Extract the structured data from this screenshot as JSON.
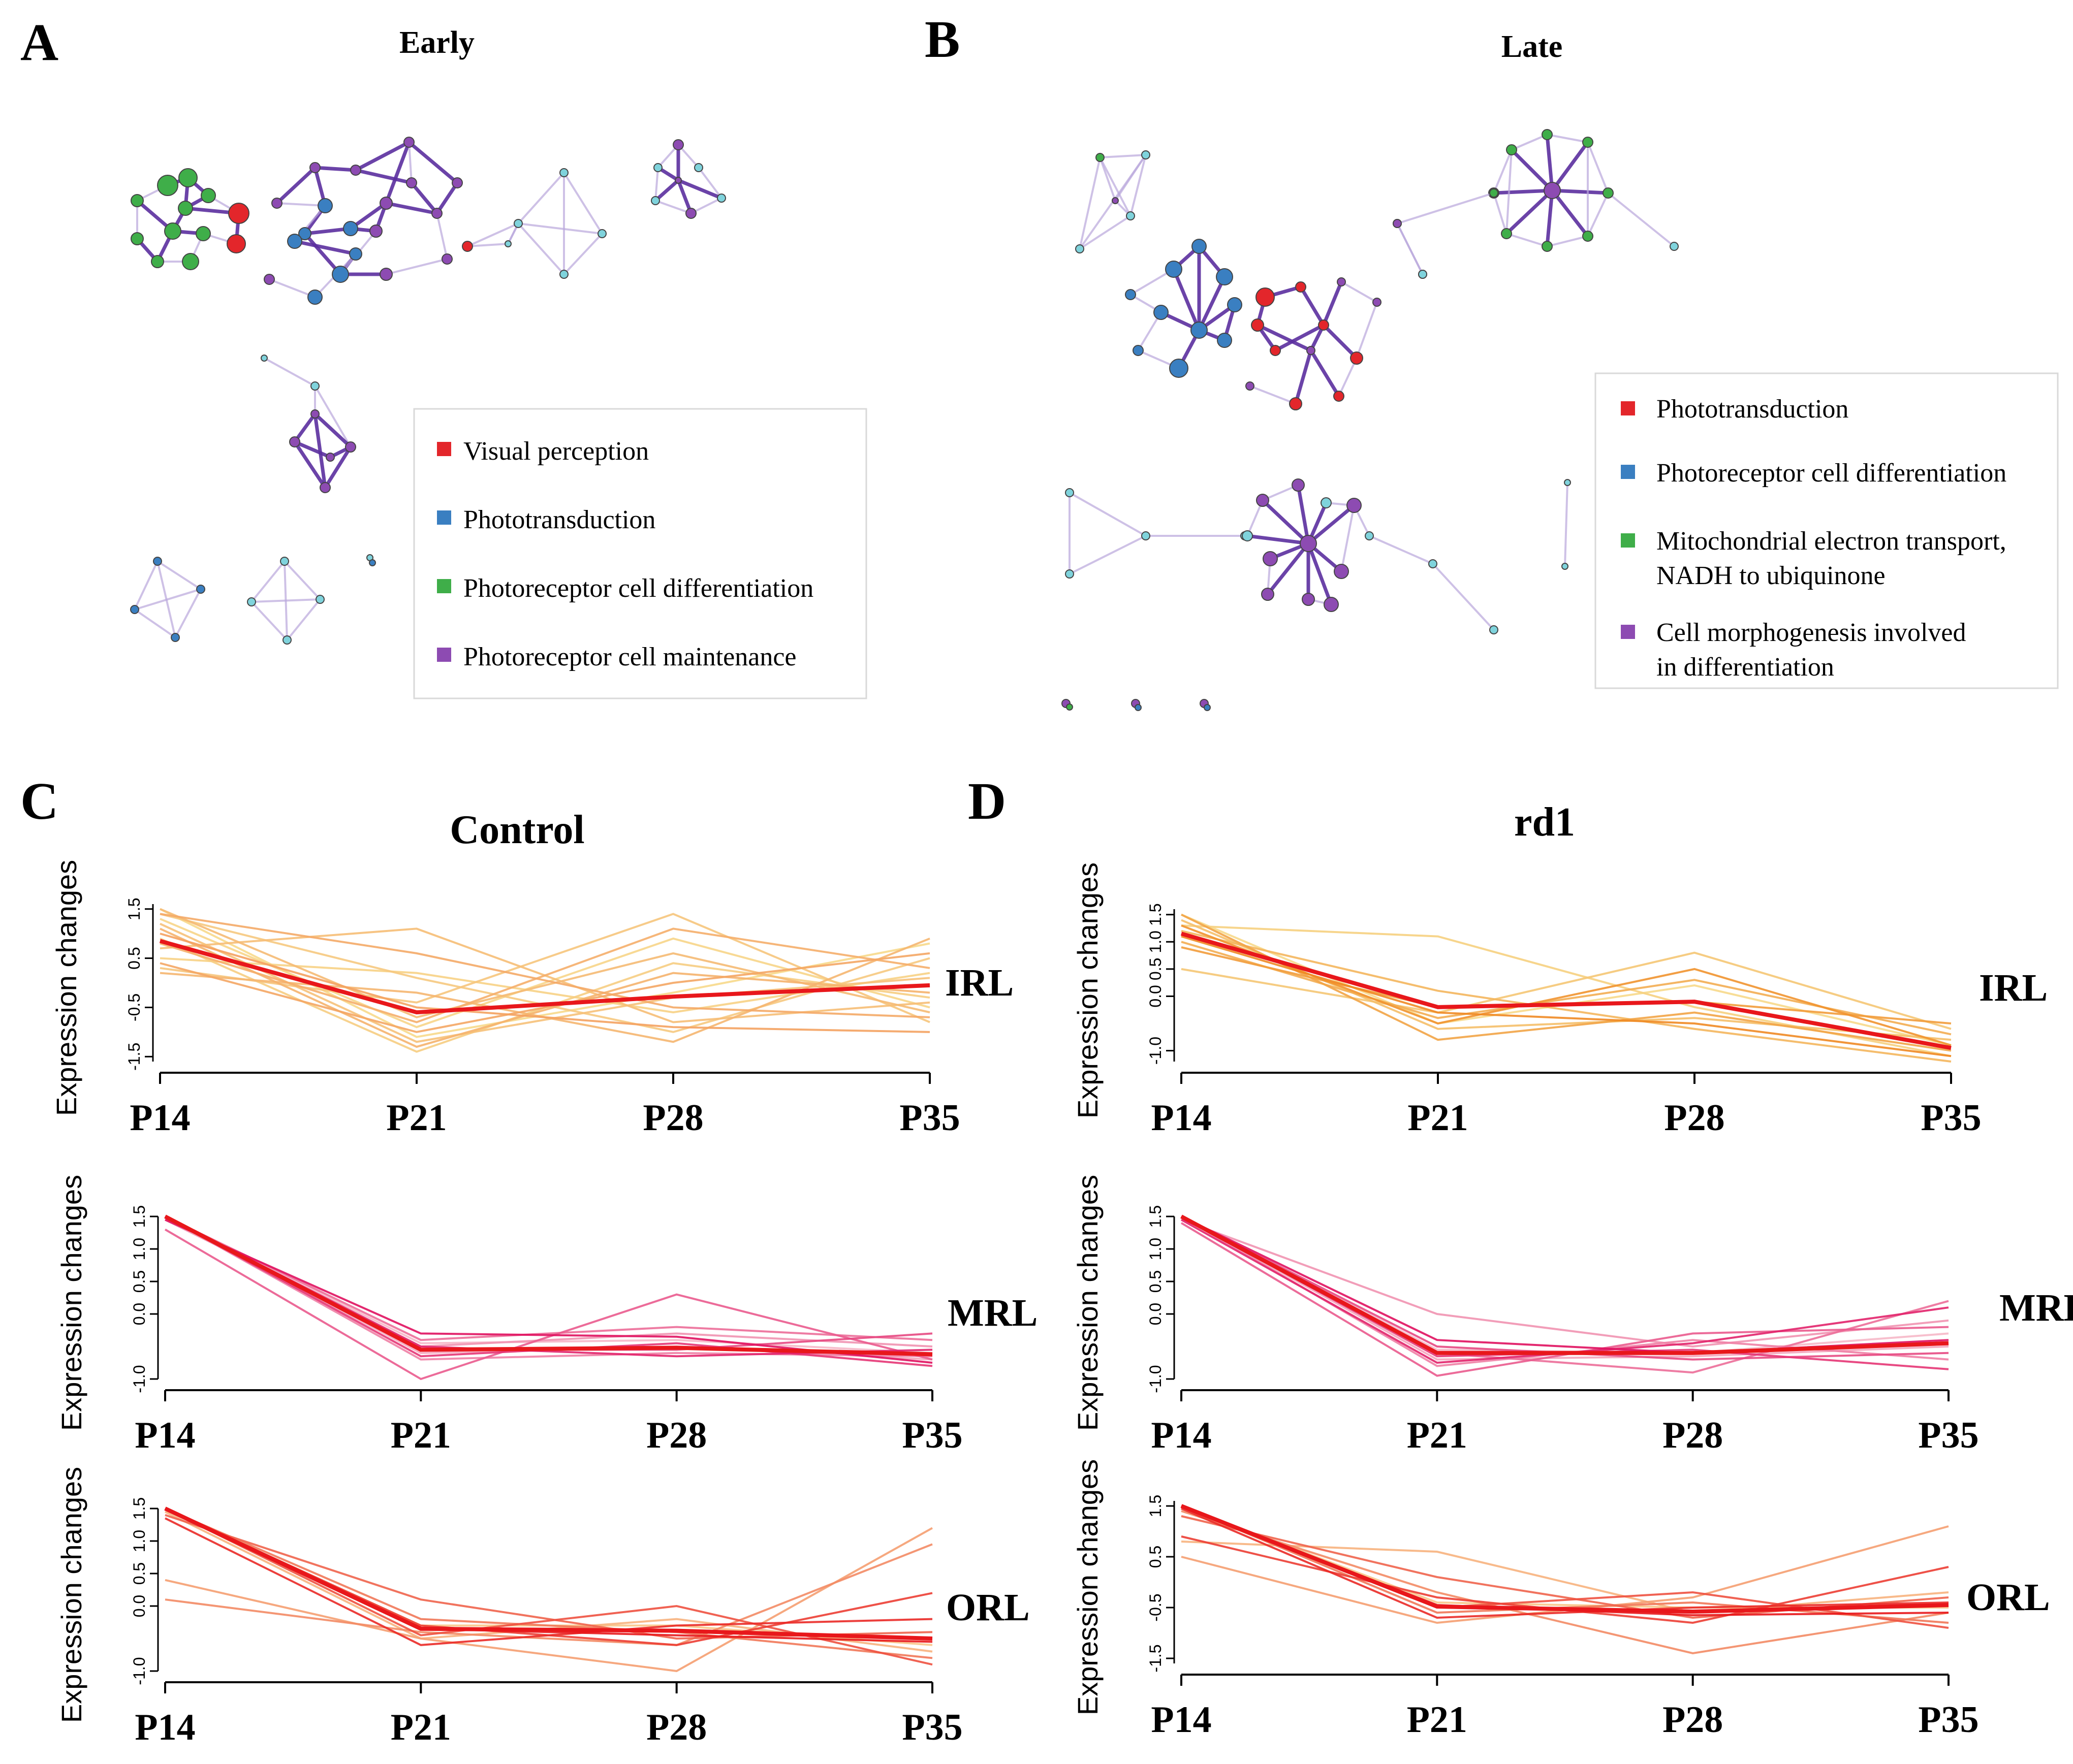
{
  "colors": {
    "node_red": "#e3262b",
    "node_blue": "#3a7fc1",
    "node_green": "#3fae49",
    "node_purple": "#8d4bb2",
    "node_teal": "#7fd3dc",
    "edge_light": "#b9a7db",
    "edge_dark": "#5b2f9e",
    "series_mean_line": "#e8171b"
  },
  "panels": {
    "A": {
      "letter": "A",
      "title": "Early",
      "legend": [
        {
          "label": "Visual perception",
          "color": "#e3262b"
        },
        {
          "label": "Phototransduction",
          "color": "#3a7fc1"
        },
        {
          "label": "Photoreceptor cell differentiation",
          "color": "#3fae49"
        },
        {
          "label": "Photoreceptor cell maintenance",
          "color": "#8d4bb2"
        }
      ]
    },
    "B": {
      "letter": "B",
      "title": "Late",
      "legend": [
        {
          "label": "Phototransduction",
          "color": "#e3262b"
        },
        {
          "label": "Photoreceptor cell differentiation",
          "color": "#3a7fc1"
        },
        {
          "label": "Mitochondrial electron transport,",
          "label2": "NADH to ubiquinone",
          "color": "#3fae49"
        },
        {
          "label": "Cell morphogenesis involved",
          "label2": "in differentiation",
          "color": "#8d4bb2"
        }
      ]
    },
    "C": {
      "letter": "C",
      "title": "Control"
    },
    "D": {
      "letter": "D",
      "title": "rd1"
    }
  },
  "chart_data": [
    {
      "type": "line",
      "panel": "C",
      "condition": "Control",
      "layer": "IRL",
      "x": [
        "P14",
        "P21",
        "P28",
        "P35"
      ],
      "ylabel": "Expression changes",
      "yticks": [
        -1.5,
        -0.5,
        0.5,
        1.5
      ],
      "yticklabels": [
        "-1.5",
        "-0.5",
        "0.5",
        "1.5"
      ],
      "ylim": [
        -1.6,
        1.6
      ],
      "mean": [
        0.85,
        -0.6,
        -0.28,
        -0.05
      ],
      "series_color_from": "#f7d98b",
      "series_color_to": "#f4a261",
      "series": [
        [
          1.5,
          -1.1,
          -0.2,
          0.8
        ],
        [
          1.3,
          -0.9,
          0.9,
          -0.5
        ],
        [
          0.5,
          0.2,
          -0.6,
          0.2
        ],
        [
          0.9,
          -1.4,
          0.4,
          -0.3
        ],
        [
          1.4,
          0.1,
          -1.0,
          0.5
        ],
        [
          0.3,
          -0.4,
          1.4,
          -0.8
        ],
        [
          1.2,
          -1.2,
          -0.3,
          0.1
        ],
        [
          0.7,
          1.1,
          -0.8,
          -0.4
        ],
        [
          1.5,
          -0.7,
          0.6,
          -0.6
        ],
        [
          0.2,
          -0.2,
          -1.2,
          0.9
        ],
        [
          1.1,
          -1.3,
          0.2,
          -0.2
        ],
        [
          0.8,
          -0.8,
          1.1,
          0.3
        ],
        [
          1.4,
          0.6,
          -0.5,
          -0.7
        ],
        [
          0.4,
          -1.0,
          0.0,
          0.6
        ],
        [
          1.0,
          -0.5,
          -0.9,
          -1.0
        ]
      ]
    },
    {
      "type": "line",
      "panel": "C",
      "condition": "Control",
      "layer": "MRL",
      "x": [
        "P14",
        "P21",
        "P28",
        "P35"
      ],
      "ylabel": "Expression changes",
      "yticks": [
        -1.0,
        0.0,
        0.5,
        1.0,
        1.5
      ],
      "yticklabels": [
        "-1.0",
        "0.0",
        "0.5",
        "1.0",
        "1.5"
      ],
      "ylim": [
        -1.0,
        1.5
      ],
      "mean": [
        1.5,
        -0.55,
        -0.52,
        -0.62
      ],
      "series_color_from": "#f6b8c8",
      "series_color_to": "#e0115f",
      "series": [
        [
          1.5,
          -0.45,
          -0.4,
          -0.6
        ],
        [
          1.5,
          -0.6,
          -0.5,
          -0.7
        ],
        [
          1.45,
          -0.5,
          -0.3,
          -0.5
        ],
        [
          1.5,
          -0.7,
          -0.6,
          -0.65
        ],
        [
          1.5,
          -0.4,
          -0.2,
          -0.4
        ],
        [
          1.3,
          -1.0,
          0.3,
          -0.7
        ],
        [
          1.5,
          -0.55,
          -0.55,
          -0.3
        ],
        [
          1.5,
          -0.65,
          -0.45,
          -0.8
        ],
        [
          1.5,
          -0.5,
          -0.65,
          -0.55
        ],
        [
          1.45,
          -0.3,
          -0.35,
          -0.75
        ]
      ]
    },
    {
      "type": "line",
      "panel": "C",
      "condition": "Control",
      "layer": "ORL",
      "x": [
        "P14",
        "P21",
        "P28",
        "P35"
      ],
      "ylabel": "Expression changes",
      "yticks": [
        -1.0,
        0.0,
        0.5,
        1.0,
        1.5
      ],
      "yticklabels": [
        "-1.0",
        "0.0",
        "0.5",
        "1.0",
        "1.5"
      ],
      "ylim": [
        -1.0,
        1.5
      ],
      "mean": [
        1.5,
        -0.35,
        -0.38,
        -0.5
      ],
      "series_color_from": "#f9c58a",
      "series_color_to": "#e8171b",
      "series": [
        [
          1.5,
          -0.3,
          -0.3,
          -0.6
        ],
        [
          1.45,
          -0.5,
          -0.2,
          -0.7
        ],
        [
          0.4,
          -0.5,
          -1.0,
          1.2
        ],
        [
          0.1,
          -0.4,
          -0.6,
          0.95
        ],
        [
          1.5,
          -0.2,
          -0.4,
          -0.8
        ],
        [
          1.4,
          0.1,
          -0.5,
          -0.4
        ],
        [
          1.5,
          -0.45,
          0.0,
          -0.9
        ],
        [
          1.5,
          -0.3,
          -0.6,
          0.2
        ],
        [
          1.35,
          -0.6,
          -0.3,
          -0.2
        ],
        [
          1.5,
          -0.35,
          -0.45,
          -0.55
        ]
      ]
    },
    {
      "type": "line",
      "panel": "D",
      "condition": "rd1",
      "layer": "IRL",
      "x": [
        "P14",
        "P21",
        "P28",
        "P35"
      ],
      "ylabel": "Expression changes",
      "yticks": [
        -1.0,
        0.0,
        0.5,
        1.0,
        1.5
      ],
      "yticklabels": [
        "-1.0",
        "0.0",
        "0.5",
        "1.0",
        "1.5"
      ],
      "ylim": [
        -1.2,
        1.6
      ],
      "mean": [
        1.15,
        -0.2,
        -0.1,
        -0.95
      ],
      "series_color_from": "#f7d98b",
      "series_color_to": "#f08a24",
      "series": [
        [
          1.5,
          -0.5,
          0.2,
          -0.9
        ],
        [
          1.3,
          1.1,
          -0.2,
          -1.1
        ],
        [
          0.5,
          -0.3,
          0.8,
          -0.6
        ],
        [
          1.4,
          -0.6,
          -0.4,
          -0.8
        ],
        [
          1.2,
          0.1,
          -0.6,
          -1.2
        ],
        [
          1.0,
          -0.4,
          0.3,
          -0.7
        ],
        [
          1.5,
          -0.8,
          -0.3,
          -1.0
        ],
        [
          0.9,
          -0.2,
          -0.1,
          -0.5
        ],
        [
          1.3,
          -0.5,
          0.5,
          -0.9
        ],
        [
          1.1,
          -0.3,
          -0.5,
          -1.1
        ]
      ]
    },
    {
      "type": "line",
      "panel": "D",
      "condition": "rd1",
      "layer": "MRL",
      "x": [
        "P14",
        "P21",
        "P28",
        "P35"
      ],
      "ylabel": "Expression changes",
      "yticks": [
        -1.0,
        0.0,
        0.5,
        1.0,
        1.5
      ],
      "yticklabels": [
        "-1.0",
        "0.0",
        "0.5",
        "1.0",
        "1.5"
      ],
      "ylim": [
        -1.0,
        1.5
      ],
      "mean": [
        1.5,
        -0.6,
        -0.6,
        -0.45
      ],
      "series_color_from": "#f6b8c8",
      "series_color_to": "#e0115f",
      "series": [
        [
          1.5,
          -0.55,
          -0.6,
          -0.3
        ],
        [
          1.5,
          -0.7,
          -0.65,
          -0.5
        ],
        [
          1.45,
          0.0,
          -0.5,
          -0.1
        ],
        [
          1.5,
          -0.8,
          -0.4,
          -0.7
        ],
        [
          1.5,
          -0.6,
          -0.9,
          0.2
        ],
        [
          1.4,
          -0.95,
          -0.3,
          -0.2
        ],
        [
          1.5,
          -0.5,
          -0.7,
          -0.6
        ],
        [
          1.5,
          -0.65,
          -0.55,
          -0.85
        ],
        [
          1.45,
          -0.75,
          -0.45,
          0.1
        ],
        [
          1.5,
          -0.4,
          -0.6,
          -0.4
        ]
      ]
    },
    {
      "type": "line",
      "panel": "D",
      "condition": "rd1",
      "layer": "ORL",
      "x": [
        "P14",
        "P21",
        "P28",
        "P35"
      ],
      "ylabel": "Expression changes",
      "yticks": [
        -1.5,
        -0.5,
        0.5,
        1.5
      ],
      "yticklabels": [
        "-1.5",
        "-0.5",
        "0.5",
        "1.5"
      ],
      "ylim": [
        -1.6,
        1.6
      ],
      "mean": [
        1.5,
        -0.48,
        -0.58,
        -0.45
      ],
      "series_color_from": "#f9c58a",
      "series_color_to": "#e8171b",
      "series": [
        [
          1.5,
          -0.4,
          -0.5,
          -0.5
        ],
        [
          0.8,
          0.6,
          -0.6,
          -0.2
        ],
        [
          0.5,
          -0.8,
          -0.3,
          1.1
        ],
        [
          1.4,
          -0.2,
          -1.4,
          -0.6
        ],
        [
          1.5,
          -0.6,
          -0.4,
          -0.8
        ],
        [
          1.3,
          0.1,
          -0.7,
          -0.3
        ],
        [
          1.5,
          -0.5,
          -0.2,
          -0.9
        ],
        [
          0.9,
          -0.3,
          -0.8,
          0.3
        ],
        [
          1.45,
          -0.7,
          -0.5,
          -0.4
        ],
        [
          1.5,
          -0.45,
          -0.65,
          -0.6
        ]
      ]
    }
  ]
}
